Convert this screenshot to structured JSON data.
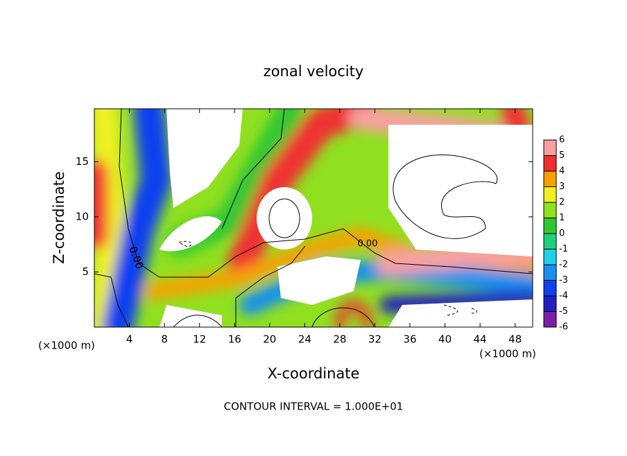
{
  "chart_data": {
    "type": "contour",
    "title": "zonal velocity",
    "x_label": "X-coordinate",
    "y_label": "Z-coordinate",
    "x_unit": "(×1000 m)",
    "y_unit": "(×1000 m)",
    "footer": "CONTOUR INTERVAL = 1.000E+01",
    "contour_labels": [
      "0.00",
      "0.00"
    ],
    "xlim": [
      0,
      50
    ],
    "xticks": [
      4,
      8,
      12,
      16,
      20,
      24,
      28,
      32,
      36,
      40,
      44,
      48
    ],
    "ylim": [
      0,
      19.8
    ],
    "yticks": [
      5,
      10,
      15
    ],
    "colorbar": {
      "levels": [
        -6,
        -5,
        -4,
        -3,
        -2,
        -1,
        0,
        1,
        2,
        3,
        4,
        5,
        6
      ],
      "colors": [
        "#7a1fa8",
        "#2020c0",
        "#1040f0",
        "#1890f0",
        "#20d0e8",
        "#20d080",
        "#30c830",
        "#90e020",
        "#f0f020",
        "#f8a000",
        "#f03030",
        "#f8a0a0"
      ]
    }
  }
}
